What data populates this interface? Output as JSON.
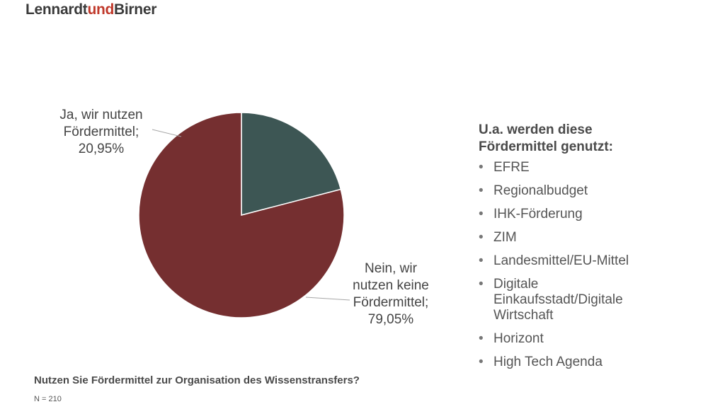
{
  "brand": {
    "part1": "Lennardt",
    "part2": "und",
    "part3": "Birner",
    "colors": {
      "text": "#3a3a3a",
      "accent": "#c0392b"
    }
  },
  "chart_data": {
    "type": "pie",
    "slices": [
      {
        "label_lines": [
          "Ja, wir nutzen",
          "Fördermittel;",
          "20,95%"
        ],
        "value": 20.95,
        "color": "#3d5654"
      },
      {
        "label_lines": [
          "Nein, wir",
          "nutzen keine",
          "Fördermittel;",
          "79,05%"
        ],
        "value": 79.05,
        "color": "#752f30"
      }
    ],
    "start_angle_deg": 0,
    "direction": "clockwise",
    "title": "Nutzen Sie Fördermittel zur Organisation des Wissenstransfers?",
    "note": "N = 210"
  },
  "side_panel": {
    "title_lines": [
      "U.a. werden diese",
      "Fördermittel genutzt:"
    ],
    "items": [
      [
        "EFRE"
      ],
      [
        "Regionalbudget"
      ],
      [
        "IHK-Förderung"
      ],
      [
        "ZIM"
      ],
      [
        "Landesmittel/EU-Mittel"
      ],
      [
        "Digitale",
        "Einkaufsstadt/Digitale",
        "Wirtschaft"
      ],
      [
        "Horizont"
      ],
      [
        "High Tech Agenda"
      ]
    ]
  }
}
